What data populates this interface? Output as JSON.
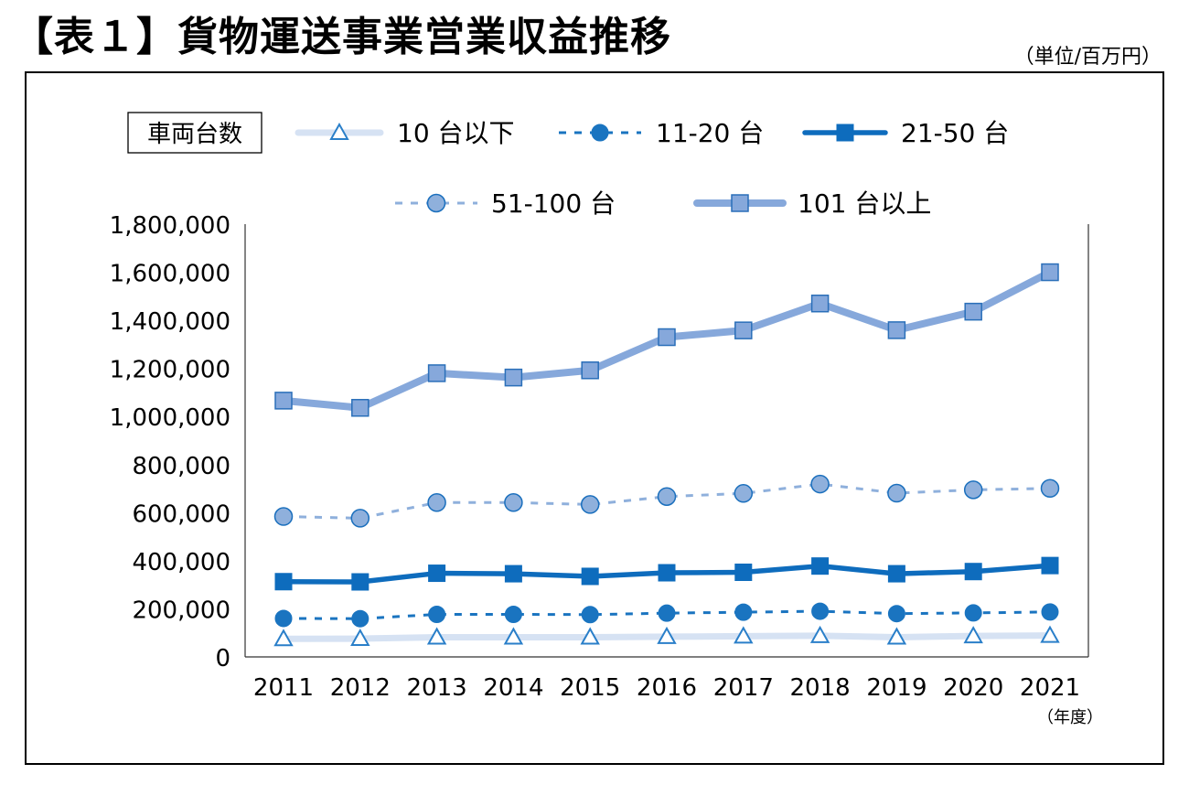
{
  "header": {
    "title": "【表１】貨物運送事業営業収益推移",
    "unit": "（単位/百万円）"
  },
  "chart_data": {
    "type": "line",
    "title": "【表１】貨物運送事業営業収益推移",
    "unit_label": "（単位/百万円）",
    "xlabel": "（年度）",
    "ylabel": "",
    "legend_title": "車両台数",
    "legend_placement": "top",
    "x": [
      "2011",
      "2012",
      "2013",
      "2014",
      "2015",
      "2016",
      "2017",
      "2018",
      "2019",
      "2020",
      "2021"
    ],
    "ylim": [
      0,
      1800000
    ],
    "yticks": [
      0,
      200000,
      400000,
      600000,
      800000,
      1000000,
      1200000,
      1400000,
      1600000,
      1800000
    ],
    "ytick_labels": [
      "0",
      "200,000",
      "400,000",
      "600,000",
      "800,000",
      "1,000,000",
      "1,200,000",
      "1,400,000",
      "1,600,000",
      "1,800,000"
    ],
    "grid": false,
    "series": [
      {
        "name": "10 台以下",
        "style": "solid",
        "marker": "triangle",
        "line_color": "#d6e2f3",
        "marker_color": "#2a7fc9",
        "values": [
          75000,
          76000,
          82000,
          82000,
          82000,
          84000,
          86000,
          88000,
          82000,
          87000,
          89000
        ]
      },
      {
        "name": "11-20 台",
        "style": "dashed",
        "marker": "circle",
        "line_color": "#1a74c0",
        "marker_color": "#1a74c0",
        "values": [
          160000,
          159000,
          177000,
          177000,
          176000,
          182000,
          186000,
          190000,
          180000,
          183000,
          187000
        ]
      },
      {
        "name": "21-50 台",
        "style": "solid-bold",
        "marker": "square",
        "line_color": "#0e6cbd",
        "marker_color": "#0e6cbd",
        "values": [
          313000,
          312000,
          348000,
          346000,
          335000,
          350000,
          352000,
          378000,
          346000,
          355000,
          380000
        ]
      },
      {
        "name": "51-100 台",
        "style": "dashed",
        "marker": "circle",
        "line_color": "#8fb0dc",
        "marker_color": "#8fb0dc",
        "values": [
          584000,
          577000,
          642000,
          642000,
          634000,
          667000,
          680000,
          719000,
          681000,
          695000,
          701000
        ]
      },
      {
        "name": "101 台以上",
        "style": "solid-thick",
        "marker": "square",
        "line_color": "#86a8db",
        "marker_color": "#86a8db",
        "values": [
          1066000,
          1036000,
          1180000,
          1162000,
          1192000,
          1330000,
          1358000,
          1470000,
          1359000,
          1436000,
          1600000
        ]
      }
    ]
  }
}
